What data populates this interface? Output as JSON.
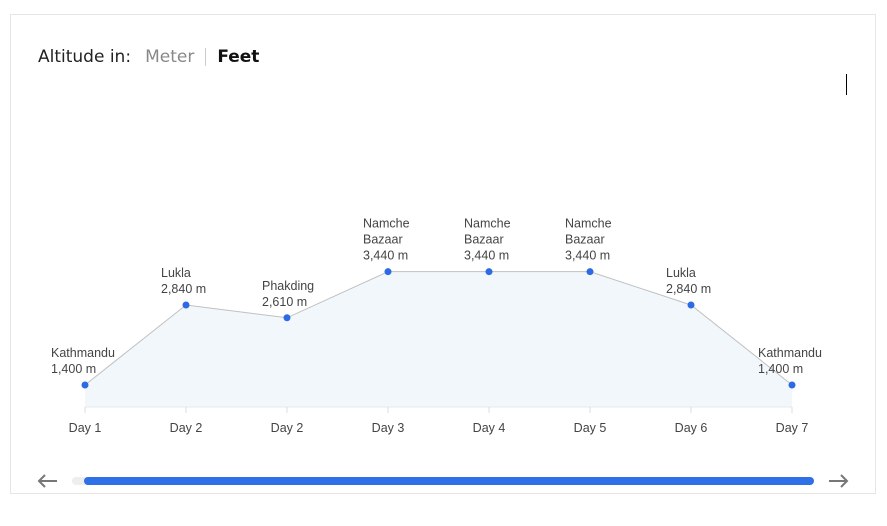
{
  "header": {
    "label": "Altitude in:",
    "options": [
      "Meter",
      "Feet"
    ],
    "selected": "Feet"
  },
  "colors": {
    "point": "#2d6be4",
    "line": "#c0c0c0",
    "area": "#f2f7fc",
    "scrollbar": "#2f6fe8"
  },
  "chart_data": {
    "type": "area",
    "categories": [
      "Day 1",
      "Day 2",
      "Day 2",
      "Day 3",
      "Day 4",
      "Day 5",
      "Day 6",
      "Day 7"
    ],
    "places": [
      [
        "Kathmandu"
      ],
      [
        "Lukla"
      ],
      [
        "Phakding"
      ],
      [
        "Namche",
        "Bazaar"
      ],
      [
        "Namche",
        "Bazaar"
      ],
      [
        "Namche",
        "Bazaar"
      ],
      [
        "Lukla"
      ],
      [
        "Kathmandu"
      ]
    ],
    "values": [
      1400,
      2840,
      2610,
      3440,
      3440,
      3440,
      2840,
      1400
    ],
    "value_labels": [
      "1,400 m",
      "2,840 m",
      "2,610 m",
      "3,440 m",
      "3,440 m",
      "3,440 m",
      "2,840 m",
      "1,400 m"
    ],
    "unit": "m",
    "grid": false
  },
  "scroll": {
    "left_icon": "arrow-left-icon",
    "right_icon": "arrow-right-icon",
    "position": 1.0
  }
}
